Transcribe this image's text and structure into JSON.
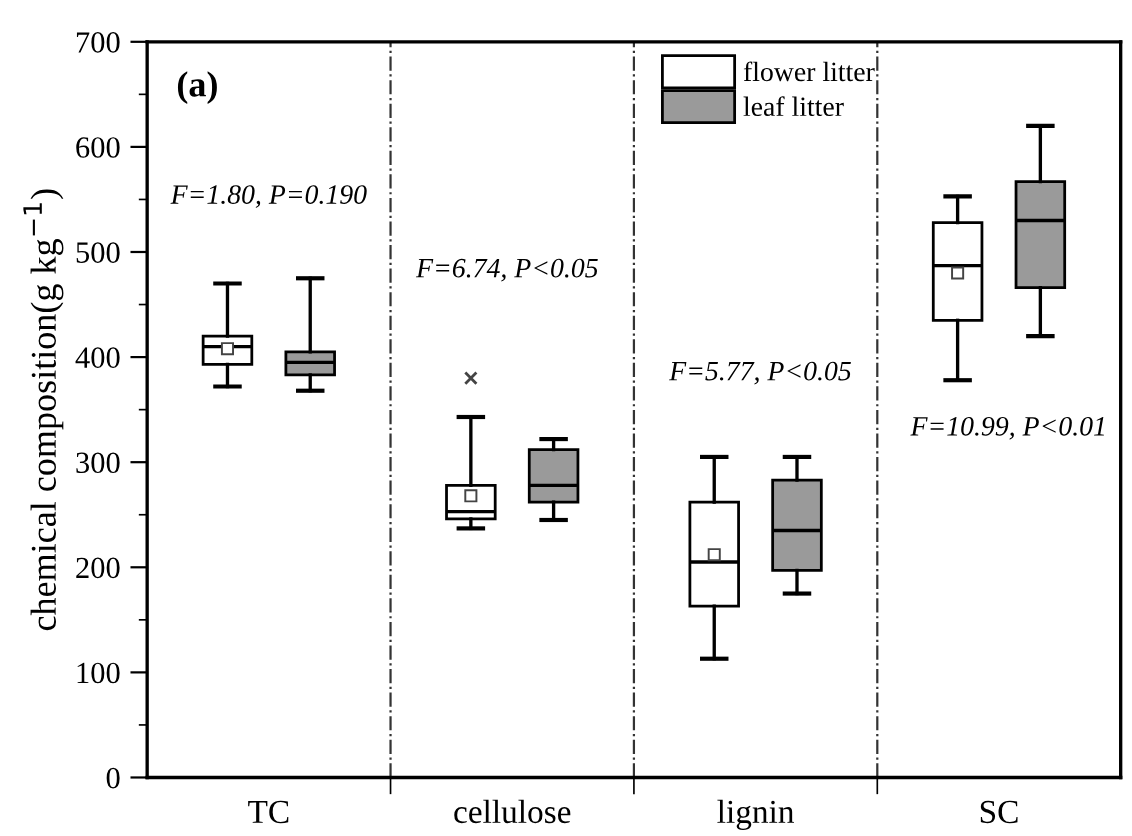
{
  "chart_data": {
    "type": "box",
    "ylabel": "chemical composition(g kg$^{−1}$)",
    "categories": [
      "TC",
      "cellulose",
      "lignin",
      "SC"
    ],
    "ylim": [
      0,
      700
    ],
    "yticks": [
      0,
      100,
      200,
      300,
      400,
      500,
      600,
      700
    ],
    "grid": false,
    "legend": "top",
    "annotations": [
      "(a)",
      "F=1.80, P=0.190",
      "F=6.74, P<0.05",
      "F=5.77, P<0.05",
      "F=10.99, P<0.01"
    ],
    "series": [
      {
        "name": "flower litter",
        "color": "#ffffff",
        "boxes": [
          {
            "low": 372,
            "q1": 393,
            "median": 410,
            "q3": 420,
            "high": 470,
            "mean": 408
          },
          {
            "low": 237,
            "q1": 246,
            "median": 253,
            "q3": 278,
            "high": 343,
            "mean": 268,
            "outliers": [
              380
            ]
          },
          {
            "low": 113,
            "q1": 163,
            "median": 205,
            "q3": 262,
            "high": 305,
            "mean": 212
          },
          {
            "low": 378,
            "q1": 435,
            "median": 487,
            "q3": 528,
            "high": 553,
            "mean": 480
          }
        ]
      },
      {
        "name": "leaf litter",
        "color": "#9a9a9a",
        "boxes": [
          {
            "low": 368,
            "q1": 383,
            "median": 395,
            "q3": 405,
            "high": 475
          },
          {
            "low": 245,
            "q1": 262,
            "median": 278,
            "q3": 312,
            "high": 322
          },
          {
            "low": 175,
            "q1": 197,
            "median": 235,
            "q3": 283,
            "high": 305
          },
          {
            "low": 420,
            "q1": 466,
            "median": 530,
            "q3": 567,
            "high": 620
          }
        ]
      }
    ]
  }
}
